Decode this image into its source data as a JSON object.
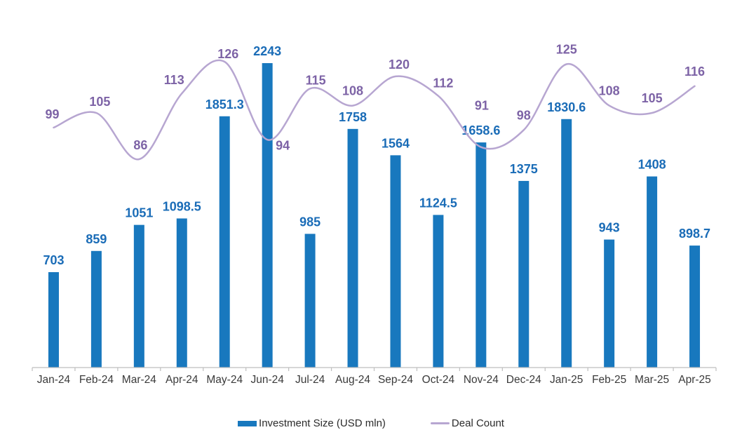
{
  "chart_data": {
    "type": "bar",
    "subtype": "combo-bar-line",
    "title": "",
    "categories": [
      "Jan-24",
      "Feb-24",
      "Mar-24",
      "Apr-24",
      "May-24",
      "Jun-24",
      "Jul-24",
      "Aug-24",
      "Sep-24",
      "Oct-24",
      "Nov-24",
      "Dec-24",
      "Jan-25",
      "Feb-25",
      "Mar-25",
      "Apr-25"
    ],
    "series": [
      {
        "name": "Investment Size (USD mln)",
        "type": "bar",
        "color": "#1878BE",
        "label_color": "#1A6CB7",
        "values": [
          703,
          859,
          1051,
          1098.5,
          1851.3,
          2243,
          985,
          1758,
          1564,
          1124.5,
          1658.6,
          1375,
          1830.6,
          943,
          1408,
          898.7
        ]
      },
      {
        "name": "Deal Count",
        "type": "line",
        "smooth": true,
        "color": "#B7A6D1",
        "label_color": "#7D63A6",
        "values": [
          99,
          105,
          86,
          113,
          126,
          94,
          115,
          108,
          120,
          112,
          91,
          98,
          125,
          108,
          105,
          116
        ]
      }
    ],
    "axes": {
      "x_labels_visible": true,
      "y_axis_visible": false,
      "gridlines": false,
      "axis_color": "#BFBFBF",
      "x_label_color": "#3A3A3A",
      "bar_axis_range": [
        0,
        2400
      ],
      "line_axis_range": [
        0,
        150
      ]
    },
    "legend": {
      "position": "bottom",
      "items": [
        "Investment Size (USD mln)",
        "Deal Count"
      ]
    },
    "data_labels_visible": true
  }
}
